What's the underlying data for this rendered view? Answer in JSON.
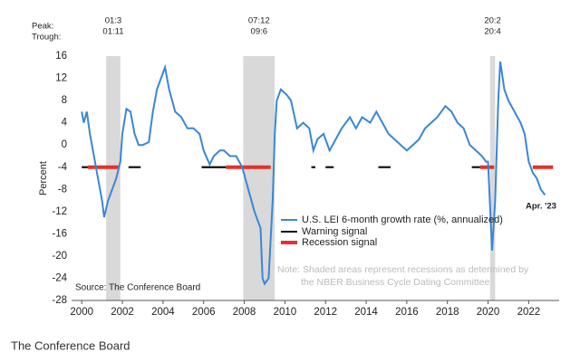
{
  "chart_data": {
    "type": "line",
    "y_label": "Percent",
    "peak_label": "Peak:",
    "trough_label": "Trough:",
    "recessions": [
      {
        "start": 2001.2,
        "end": 2001.9,
        "peak": "01:3",
        "trough": "01:11"
      },
      {
        "start": 2007.95,
        "end": 2009.5,
        "peak": "07:12",
        "trough": "09:6"
      },
      {
        "start": 2020.1,
        "end": 2020.35,
        "peak": "20:2",
        "trough": "20:4"
      }
    ],
    "series": [
      {
        "name": "U.S. LEI 6-month growth rate (%, annualized)",
        "color": "#3a86d8",
        "x": [
          2000.0,
          2000.1,
          2000.25,
          2000.4,
          2000.6,
          2000.8,
          2001.0,
          2001.1,
          2001.3,
          2001.5,
          2001.7,
          2001.9,
          2002.0,
          2002.2,
          2002.4,
          2002.6,
          2002.8,
          2003.0,
          2003.3,
          2003.5,
          2003.7,
          2004.0,
          2004.1,
          2004.3,
          2004.6,
          2004.9,
          2005.2,
          2005.5,
          2005.8,
          2006.0,
          2006.3,
          2006.5,
          2006.8,
          2007.0,
          2007.3,
          2007.6,
          2007.9,
          2008.2,
          2008.5,
          2008.8,
          2008.9,
          2009.0,
          2009.2,
          2009.4,
          2009.5,
          2009.6,
          2009.8,
          2010.1,
          2010.3,
          2010.6,
          2010.9,
          2011.2,
          2011.4,
          2011.6,
          2011.9,
          2012.2,
          2012.5,
          2012.8,
          2013.2,
          2013.5,
          2013.8,
          2014.2,
          2014.5,
          2014.8,
          2015.1,
          2015.4,
          2015.7,
          2016.0,
          2016.3,
          2016.6,
          2016.9,
          2017.2,
          2017.5,
          2017.9,
          2018.2,
          2018.5,
          2018.8,
          2019.1,
          2019.4,
          2019.7,
          2019.9,
          2020.0,
          2020.2,
          2020.35,
          2020.5,
          2020.6,
          2020.8,
          2021.0,
          2021.3,
          2021.6,
          2021.8,
          2022.0,
          2022.2,
          2022.4,
          2022.6,
          2022.8
        ],
        "values": [
          6,
          4,
          6,
          2,
          -2,
          -6,
          -10,
          -13,
          -10,
          -8,
          -6,
          -3,
          2,
          6.5,
          6,
          2,
          0,
          0,
          0.5,
          6,
          10,
          13,
          14,
          10,
          6,
          5,
          3,
          3,
          2,
          -1,
          -3.5,
          -2,
          -1,
          -1,
          -2,
          -2,
          -4,
          -8,
          -12,
          -15,
          -24,
          -25,
          -24,
          -10,
          2,
          8,
          10,
          9,
          8,
          3,
          4,
          3,
          -1,
          1,
          2,
          -1,
          1,
          3,
          5,
          3,
          5,
          4,
          6,
          4,
          2,
          1,
          0,
          -1,
          0,
          1,
          3,
          4,
          5,
          7,
          6,
          4,
          3,
          0,
          -1,
          -2,
          -3,
          -3,
          -19,
          -10,
          8,
          15,
          10,
          8,
          6,
          4,
          2,
          -3,
          -5,
          -6,
          -8,
          -9
        ]
      }
    ],
    "signal_level": -4,
    "warning": {
      "name": "Warning signal",
      "color": "#111111",
      "periods": [
        [
          2000.0,
          2000.3
        ],
        [
          2002.3,
          2002.9
        ],
        [
          2005.9,
          2007.1
        ],
        [
          2011.3,
          2011.5
        ],
        [
          2012.0,
          2012.4
        ],
        [
          2014.6,
          2015.2
        ],
        [
          2019.2,
          2019.6
        ]
      ]
    },
    "recession_signal": {
      "name": "Recession signal",
      "color": "#e8302a",
      "periods": [
        [
          2000.3,
          2001.8
        ],
        [
          2007.1,
          2009.3
        ],
        [
          2019.6,
          2020.3
        ],
        [
          2022.2,
          2023.2
        ]
      ]
    },
    "end_label": "Apr. '23",
    "note": [
      "Note: Shaded areas represent recessions as determined by",
      "the NBER Business Cycle Dating Committee"
    ],
    "source": "Source: The Conference Board",
    "xlim": [
      1999.5,
      2023.5
    ],
    "ylim": [
      -28,
      16
    ],
    "xticks": [
      2000,
      2002,
      2004,
      2006,
      2008,
      2010,
      2012,
      2014,
      2016,
      2018,
      2020,
      2022
    ],
    "yticks": [
      -28,
      -24,
      -20,
      -16,
      -12,
      -8,
      -4,
      0,
      4,
      8,
      12,
      16
    ]
  },
  "caption": "The Conference Board"
}
